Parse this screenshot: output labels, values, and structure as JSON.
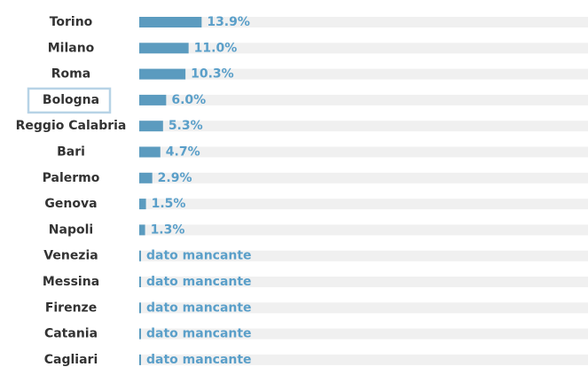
{
  "chart_data": {
    "type": "bar",
    "orientation": "horizontal",
    "categories": [
      "Torino",
      "Milano",
      "Roma",
      "Bologna",
      "Reggio Calabria",
      "Bari",
      "Palermo",
      "Genova",
      "Napoli",
      "Venezia",
      "Messina",
      "Firenze",
      "Catania",
      "Cagliari"
    ],
    "values": [
      13.9,
      11.0,
      10.3,
      6.0,
      5.3,
      4.7,
      2.9,
      1.5,
      1.3,
      null,
      null,
      null,
      null,
      null
    ],
    "value_labels": [
      "13.9%",
      "11.0%",
      "10.3%",
      "6.0%",
      "5.3%",
      "4.7%",
      "2.9%",
      "1.5%",
      "1.3%",
      "dato mancante",
      "dato mancante",
      "dato mancante",
      "dato mancante",
      "dato mancante"
    ],
    "color": "#5b9bbf",
    "xlim": [
      0,
      100
    ],
    "selected": 3
  }
}
